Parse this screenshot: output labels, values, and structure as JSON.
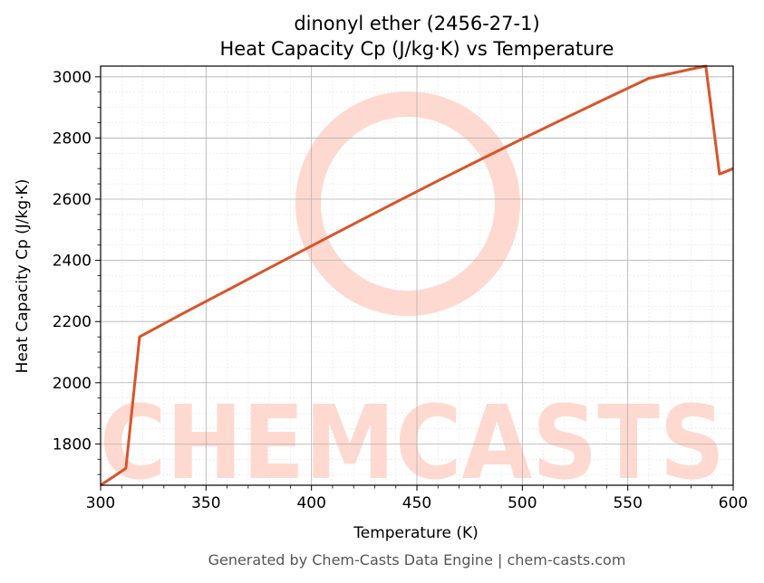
{
  "chart_data": {
    "type": "line",
    "title": "dinonyl ether (2456-27-1)",
    "subtitle": "Heat Capacity Cp (J/kg·K) vs Temperature",
    "xlabel": "Temperature (K)",
    "ylabel": "Heat Capacity Cp (J/kg·K)",
    "xlim": [
      300,
      600
    ],
    "ylim": [
      1665,
      3035
    ],
    "xticks": [
      300,
      350,
      400,
      450,
      500,
      550,
      600
    ],
    "yticks": [
      1800,
      2000,
      2200,
      2400,
      2600,
      2800,
      3000
    ],
    "grid": true,
    "series": [
      {
        "color": "#d9542a",
        "x": [
          300,
          312,
          318.5,
          340,
          360,
          380,
          400,
          420,
          440,
          460,
          480,
          500,
          520,
          540,
          560,
          580,
          587,
          593.5,
          600
        ],
        "y": [
          1665,
          1720,
          2150,
          2230,
          2302,
          2375,
          2447,
          2519,
          2590,
          2660,
          2729,
          2797,
          2864,
          2930,
          2995,
          3025,
          3035,
          2682,
          2700
        ]
      }
    ]
  },
  "watermark": {
    "text": "CHEMCASTS",
    "color": "#ffd9cf"
  },
  "footer": "Generated by Chem-Casts Data Engine | chem-casts.com"
}
